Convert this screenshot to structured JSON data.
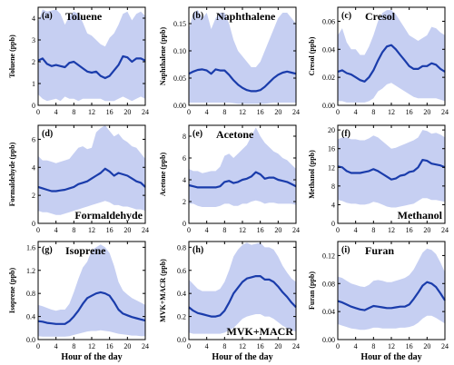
{
  "chart_data": [
    {
      "type": "area",
      "tag": "(a)",
      "title": "Toluene",
      "title_position": "top-center",
      "ylabel": "Toluene (ppb)",
      "xlabel": "",
      "xlim": [
        0,
        24
      ],
      "ylim": [
        0,
        4.5
      ],
      "xticks": [
        0,
        4,
        8,
        12,
        16,
        20,
        24
      ],
      "yticks": [
        0,
        1,
        2,
        3,
        4
      ],
      "ytick_labels": [
        "0",
        "1",
        "2",
        "3",
        "4"
      ],
      "x": [
        0,
        1,
        2,
        3,
        4,
        5,
        6,
        7,
        8,
        9,
        10,
        11,
        12,
        13,
        14,
        15,
        16,
        17,
        18,
        19,
        20,
        21,
        22,
        23,
        24
      ],
      "mean": [
        2.05,
        2.15,
        1.9,
        1.8,
        1.85,
        1.8,
        1.75,
        1.95,
        2.0,
        1.85,
        1.7,
        1.55,
        1.5,
        1.55,
        1.35,
        1.25,
        1.35,
        1.6,
        1.85,
        2.25,
        2.2,
        2.0,
        2.15,
        2.15,
        2.05
      ],
      "upper": [
        3.8,
        4.4,
        4.3,
        4.35,
        4.4,
        4.2,
        3.7,
        4.1,
        4.3,
        4.2,
        3.8,
        3.3,
        3.2,
        3.0,
        2.8,
        2.7,
        3.1,
        3.3,
        3.7,
        4.2,
        4.3,
        3.9,
        4.2,
        4.3,
        4.1
      ],
      "lower": [
        0.5,
        0.3,
        0.2,
        0.25,
        0.3,
        0.2,
        0.4,
        0.3,
        0.3,
        0.2,
        0.3,
        0.3,
        0.3,
        0.3,
        0.3,
        0.2,
        0.2,
        0.2,
        0.3,
        0.4,
        0.3,
        0.2,
        0.3,
        0.4,
        0.3
      ]
    },
    {
      "type": "area",
      "tag": "(b)",
      "title": "Naphthalene",
      "title_position": "top-center",
      "ylabel": "Naphthalene (ppb)",
      "xlabel": "",
      "xlim": [
        0,
        24
      ],
      "ylim": [
        0,
        0.18
      ],
      "xticks": [
        0,
        4,
        8,
        12,
        16,
        20,
        24
      ],
      "yticks": [
        0,
        0.05,
        0.1,
        0.15
      ],
      "ytick_labels": [
        "0.00",
        "0.05",
        "0.10",
        "0.15"
      ],
      "x": [
        0,
        1,
        2,
        3,
        4,
        5,
        6,
        7,
        8,
        9,
        10,
        11,
        12,
        13,
        14,
        15,
        16,
        17,
        18,
        19,
        20,
        21,
        22,
        23,
        24
      ],
      "mean": [
        0.058,
        0.062,
        0.065,
        0.066,
        0.064,
        0.058,
        0.066,
        0.064,
        0.064,
        0.056,
        0.046,
        0.038,
        0.032,
        0.028,
        0.026,
        0.026,
        0.028,
        0.034,
        0.042,
        0.05,
        0.056,
        0.06,
        0.062,
        0.06,
        0.058
      ],
      "upper": [
        0.14,
        0.17,
        0.175,
        0.16,
        0.17,
        0.14,
        0.16,
        0.17,
        0.17,
        0.15,
        0.12,
        0.1,
        0.09,
        0.08,
        0.07,
        0.07,
        0.08,
        0.1,
        0.12,
        0.14,
        0.16,
        0.17,
        0.17,
        0.16,
        0.15
      ],
      "lower": [
        0.005,
        0.005,
        0.005,
        0.005,
        0.005,
        0.005,
        0.005,
        0.005,
        0.005,
        0.005,
        0.004,
        0.003,
        0.003,
        0.003,
        0.003,
        0.003,
        0.003,
        0.003,
        0.004,
        0.005,
        0.005,
        0.005,
        0.005,
        0.005,
        0.005
      ]
    },
    {
      "type": "area",
      "tag": "(c)",
      "title": "Cresol",
      "title_position": "top-center",
      "ylabel": "Cresol (ppb)",
      "xlabel": "",
      "xlim": [
        0,
        24
      ],
      "ylim": [
        0,
        0.07
      ],
      "xticks": [
        0,
        4,
        8,
        12,
        16,
        20,
        24
      ],
      "yticks": [
        0,
        0.02,
        0.04,
        0.06
      ],
      "ytick_labels": [
        "0.00",
        "0.02",
        "0.04",
        "0.06"
      ],
      "x": [
        0,
        1,
        2,
        3,
        4,
        5,
        6,
        7,
        8,
        9,
        10,
        11,
        12,
        13,
        14,
        15,
        16,
        17,
        18,
        19,
        20,
        21,
        22,
        23,
        24
      ],
      "mean": [
        0.024,
        0.025,
        0.023,
        0.022,
        0.02,
        0.018,
        0.017,
        0.02,
        0.025,
        0.032,
        0.038,
        0.042,
        0.043,
        0.04,
        0.036,
        0.032,
        0.028,
        0.026,
        0.026,
        0.028,
        0.028,
        0.03,
        0.029,
        0.026,
        0.024
      ],
      "upper": [
        0.05,
        0.055,
        0.045,
        0.04,
        0.04,
        0.036,
        0.036,
        0.042,
        0.05,
        0.06,
        0.066,
        0.068,
        0.068,
        0.065,
        0.06,
        0.055,
        0.05,
        0.048,
        0.046,
        0.048,
        0.05,
        0.056,
        0.055,
        0.052,
        0.05
      ],
      "lower": [
        0.003,
        0.003,
        0.002,
        0.002,
        0.002,
        0.002,
        0.002,
        0.003,
        0.005,
        0.01,
        0.012,
        0.015,
        0.016,
        0.014,
        0.012,
        0.01,
        0.008,
        0.006,
        0.005,
        0.005,
        0.005,
        0.005,
        0.005,
        0.004,
        0.003
      ]
    },
    {
      "type": "area",
      "tag": "(d)",
      "title": "Formaldehyde",
      "title_position": "bottom-right",
      "ylabel": "Formaldehyde (ppb)",
      "xlabel": "",
      "xlim": [
        0,
        24
      ],
      "ylim": [
        0,
        7
      ],
      "xticks": [
        0,
        4,
        8,
        12,
        16,
        20,
        24
      ],
      "yticks": [
        0,
        2,
        4,
        6
      ],
      "ytick_labels": [
        "0",
        "2",
        "4",
        "6"
      ],
      "x": [
        0,
        1,
        2,
        3,
        4,
        5,
        6,
        7,
        8,
        9,
        10,
        11,
        12,
        13,
        14,
        15,
        16,
        17,
        18,
        19,
        20,
        21,
        22,
        23,
        24
      ],
      "mean": [
        2.6,
        2.5,
        2.4,
        2.3,
        2.3,
        2.35,
        2.4,
        2.5,
        2.6,
        2.8,
        2.9,
        3.0,
        3.2,
        3.4,
        3.6,
        3.9,
        3.7,
        3.4,
        3.6,
        3.5,
        3.4,
        3.2,
        3.0,
        2.9,
        2.6
      ],
      "upper": [
        4.8,
        4.5,
        4.5,
        4.4,
        4.3,
        4.4,
        4.5,
        4.6,
        5.0,
        5.4,
        5.5,
        5.3,
        5.4,
        6.5,
        6.8,
        7.0,
        6.6,
        6.2,
        6.4,
        6.0,
        5.8,
        5.5,
        5.4,
        5.0,
        4.6
      ],
      "lower": [
        0.9,
        0.8,
        0.8,
        0.7,
        0.6,
        0.6,
        0.7,
        0.8,
        0.9,
        1.0,
        1.1,
        1.2,
        1.3,
        1.4,
        1.5,
        1.6,
        1.5,
        1.3,
        1.3,
        1.2,
        1.2,
        1.1,
        1.0,
        1.0,
        0.9
      ]
    },
    {
      "type": "area",
      "tag": "(e)",
      "title": "Acetone",
      "title_position": "top-center",
      "ylabel": "Acetone (ppb)",
      "xlabel": "",
      "xlim": [
        0,
        24
      ],
      "ylim": [
        0,
        9
      ],
      "xticks": [
        0,
        4,
        8,
        12,
        16,
        20,
        24
      ],
      "yticks": [
        0,
        2,
        4,
        6,
        8
      ],
      "ytick_labels": [
        "0",
        "2",
        "4",
        "6",
        "8"
      ],
      "x": [
        0,
        1,
        2,
        3,
        4,
        5,
        6,
        7,
        8,
        9,
        10,
        11,
        12,
        13,
        14,
        15,
        16,
        17,
        18,
        19,
        20,
        21,
        22,
        23,
        24
      ],
      "mean": [
        3.5,
        3.4,
        3.3,
        3.3,
        3.3,
        3.3,
        3.3,
        3.4,
        3.8,
        3.9,
        3.7,
        3.8,
        4.0,
        4.1,
        4.3,
        4.7,
        4.5,
        4.1,
        4.2,
        4.2,
        4.0,
        3.9,
        3.8,
        3.6,
        3.4
      ],
      "upper": [
        5.0,
        4.8,
        4.8,
        4.6,
        4.7,
        4.8,
        4.8,
        5.2,
        6.2,
        6.4,
        6.0,
        6.4,
        6.8,
        7.2,
        8.0,
        8.8,
        8.0,
        7.4,
        7.0,
        6.6,
        6.4,
        6.0,
        5.8,
        5.4,
        5.0
      ],
      "lower": [
        1.8,
        1.8,
        1.6,
        1.5,
        1.5,
        1.5,
        1.5,
        1.6,
        1.8,
        1.8,
        1.6,
        1.6,
        1.8,
        1.8,
        2.0,
        2.1,
        2.0,
        1.8,
        1.9,
        1.9,
        1.8,
        1.8,
        1.8,
        1.8,
        1.7
      ]
    },
    {
      "type": "area",
      "tag": "(f)",
      "title": "Methanol",
      "title_position": "bottom-right",
      "ylabel": "Methanol (ppb)",
      "xlabel": "",
      "xlim": [
        0,
        24
      ],
      "ylim": [
        0,
        21
      ],
      "xticks": [
        0,
        4,
        8,
        12,
        16,
        20,
        24
      ],
      "yticks": [
        0,
        4,
        8,
        12,
        16,
        20
      ],
      "ytick_labels": [
        "0",
        "4",
        "8",
        "12",
        "16",
        "20"
      ],
      "x": [
        0,
        1,
        2,
        3,
        4,
        5,
        6,
        7,
        8,
        9,
        10,
        11,
        12,
        13,
        14,
        15,
        16,
        17,
        18,
        19,
        20,
        21,
        22,
        23,
        24
      ],
      "mean": [
        12.2,
        12.0,
        11.2,
        10.8,
        10.8,
        10.8,
        11.0,
        11.2,
        11.6,
        11.2,
        10.6,
        10.0,
        9.4,
        9.6,
        10.2,
        10.4,
        11.0,
        11.2,
        12.0,
        13.6,
        13.4,
        12.8,
        12.6,
        12.4,
        12.0
      ],
      "upper": [
        18.0,
        18.4,
        18.4,
        18.0,
        18.0,
        17.8,
        17.8,
        18.2,
        18.8,
        18.4,
        17.6,
        16.8,
        16.0,
        16.2,
        16.6,
        17.0,
        17.4,
        17.8,
        18.4,
        20.0,
        19.8,
        19.2,
        19.4,
        19.0,
        18.4
      ],
      "lower": [
        5.0,
        4.8,
        4.4,
        4.2,
        4.2,
        4.0,
        4.0,
        4.2,
        4.6,
        4.4,
        4.0,
        3.6,
        3.4,
        3.4,
        3.6,
        3.8,
        4.0,
        4.2,
        4.8,
        5.4,
        5.4,
        5.0,
        5.0,
        4.8,
        4.6
      ]
    },
    {
      "type": "area",
      "tag": "(g)",
      "title": "Isoprene",
      "title_position": "top-center",
      "ylabel": "Isoprene (ppb)",
      "xlabel": "Hour of the day",
      "xlim": [
        0,
        24
      ],
      "ylim": [
        0,
        1.7
      ],
      "xticks": [
        0,
        4,
        8,
        12,
        16,
        20,
        24
      ],
      "yticks": [
        0,
        0.4,
        0.8,
        1.2,
        1.6
      ],
      "ytick_labels": [
        "0.0",
        "0.4",
        "0.8",
        "1.2",
        "1.6"
      ],
      "x": [
        0,
        1,
        2,
        3,
        4,
        5,
        6,
        7,
        8,
        9,
        10,
        11,
        12,
        13,
        14,
        15,
        16,
        17,
        18,
        19,
        20,
        21,
        22,
        23,
        24
      ],
      "mean": [
        0.32,
        0.31,
        0.29,
        0.28,
        0.27,
        0.27,
        0.27,
        0.32,
        0.4,
        0.5,
        0.62,
        0.72,
        0.76,
        0.8,
        0.82,
        0.8,
        0.76,
        0.65,
        0.52,
        0.45,
        0.42,
        0.39,
        0.37,
        0.35,
        0.33
      ],
      "upper": [
        0.6,
        0.58,
        0.55,
        0.52,
        0.5,
        0.52,
        0.52,
        0.62,
        0.82,
        1.05,
        1.25,
        1.35,
        1.55,
        1.6,
        1.65,
        1.6,
        1.5,
        1.28,
        1.0,
        0.85,
        0.78,
        0.72,
        0.68,
        0.64,
        0.6
      ],
      "lower": [
        0.06,
        0.05,
        0.05,
        0.05,
        0.05,
        0.05,
        0.05,
        0.06,
        0.08,
        0.1,
        0.12,
        0.14,
        0.15,
        0.15,
        0.16,
        0.15,
        0.14,
        0.12,
        0.1,
        0.09,
        0.08,
        0.07,
        0.07,
        0.06,
        0.06
      ]
    },
    {
      "type": "area",
      "tag": "(h)",
      "title": "MVK+MACR",
      "title_position": "bottom-right",
      "ylabel": "MVK+MACR (ppb)",
      "xlabel": "Hour of the day",
      "xlim": [
        0,
        24
      ],
      "ylim": [
        0,
        0.85
      ],
      "xticks": [
        0,
        4,
        8,
        12,
        16,
        20,
        24
      ],
      "yticks": [
        0,
        0.2,
        0.4,
        0.6,
        0.8
      ],
      "ytick_labels": [
        "0.0",
        "0.2",
        "0.4",
        "0.6",
        "0.8"
      ],
      "x": [
        0,
        1,
        2,
        3,
        4,
        5,
        6,
        7,
        8,
        9,
        10,
        11,
        12,
        13,
        14,
        15,
        16,
        17,
        18,
        19,
        20,
        21,
        22,
        23,
        24
      ],
      "mean": [
        0.28,
        0.25,
        0.23,
        0.22,
        0.21,
        0.2,
        0.2,
        0.21,
        0.25,
        0.32,
        0.4,
        0.45,
        0.5,
        0.53,
        0.54,
        0.55,
        0.55,
        0.52,
        0.52,
        0.5,
        0.46,
        0.41,
        0.37,
        0.32,
        0.28
      ],
      "upper": [
        0.52,
        0.48,
        0.44,
        0.42,
        0.42,
        0.42,
        0.42,
        0.44,
        0.5,
        0.6,
        0.72,
        0.78,
        0.82,
        0.84,
        0.82,
        0.83,
        0.84,
        0.8,
        0.8,
        0.78,
        0.72,
        0.64,
        0.58,
        0.53,
        0.5
      ],
      "lower": [
        0.06,
        0.05,
        0.05,
        0.05,
        0.05,
        0.05,
        0.05,
        0.05,
        0.06,
        0.08,
        0.1,
        0.14,
        0.18,
        0.2,
        0.21,
        0.22,
        0.22,
        0.2,
        0.2,
        0.18,
        0.15,
        0.12,
        0.1,
        0.08,
        0.07
      ]
    },
    {
      "type": "area",
      "tag": "(i)",
      "title": "Furan",
      "title_position": "top-center",
      "ylabel": "Furan (ppb)",
      "xlabel": "Hour of the day",
      "xlim": [
        0,
        24
      ],
      "ylim": [
        0,
        0.14
      ],
      "xticks": [
        0,
        4,
        8,
        12,
        16,
        20,
        24
      ],
      "yticks": [
        0,
        0.04,
        0.08,
        0.12
      ],
      "ytick_labels": [
        "0.00",
        "0.04",
        "0.08",
        "0.12"
      ],
      "x": [
        0,
        1,
        2,
        3,
        4,
        5,
        6,
        7,
        8,
        9,
        10,
        11,
        12,
        13,
        14,
        15,
        16,
        17,
        18,
        19,
        20,
        21,
        22,
        23,
        24
      ],
      "mean": [
        0.055,
        0.053,
        0.05,
        0.047,
        0.045,
        0.043,
        0.042,
        0.045,
        0.048,
        0.047,
        0.046,
        0.045,
        0.045,
        0.046,
        0.047,
        0.047,
        0.05,
        0.058,
        0.067,
        0.077,
        0.082,
        0.08,
        0.075,
        0.066,
        0.056
      ],
      "upper": [
        0.09,
        0.088,
        0.084,
        0.08,
        0.078,
        0.076,
        0.075,
        0.078,
        0.084,
        0.085,
        0.084,
        0.082,
        0.082,
        0.084,
        0.086,
        0.088,
        0.092,
        0.1,
        0.112,
        0.124,
        0.13,
        0.128,
        0.122,
        0.11,
        0.096
      ],
      "lower": [
        0.022,
        0.02,
        0.018,
        0.016,
        0.015,
        0.014,
        0.014,
        0.015,
        0.017,
        0.017,
        0.016,
        0.016,
        0.016,
        0.016,
        0.017,
        0.017,
        0.018,
        0.02,
        0.024,
        0.03,
        0.034,
        0.034,
        0.031,
        0.027,
        0.023
      ]
    }
  ],
  "colors": {
    "band": "#c6cff2",
    "mean_line": "#1a3cab",
    "axis": "#000000"
  }
}
